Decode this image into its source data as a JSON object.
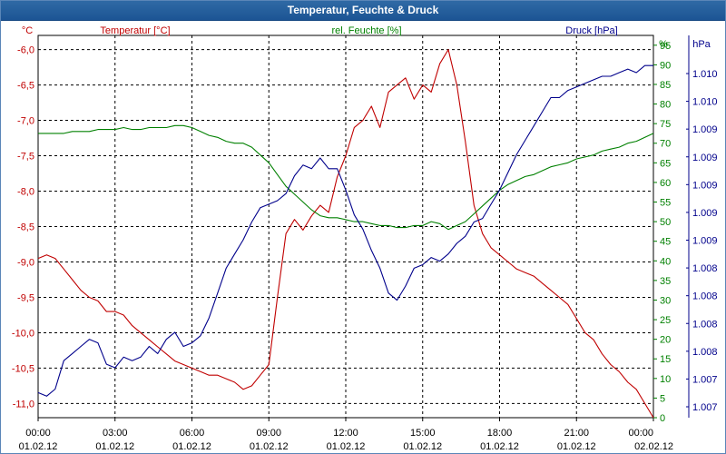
{
  "window": {
    "title": "Temperatur, Feuchte & Druck"
  },
  "chart_data": {
    "type": "line",
    "title": "Temperatur, Feuchte & Druck",
    "grid": true,
    "x_tick_labels": [
      {
        "time": "00:00",
        "date": "01.02.12"
      },
      {
        "time": "03:00",
        "date": "01.02.12"
      },
      {
        "time": "06:00",
        "date": "01.02.12"
      },
      {
        "time": "09:00",
        "date": "01.02.12"
      },
      {
        "time": "12:00",
        "date": "01.02.12"
      },
      {
        "time": "15:00",
        "date": "01.02.12"
      },
      {
        "time": "18:00",
        "date": "01.02.12"
      },
      {
        "time": "21:00",
        "date": "01.02.12"
      },
      {
        "time": "00:00",
        "date": "02.02.12"
      }
    ],
    "xlim": [
      "01.02.12 00:00",
      "02.02.12 00:00"
    ],
    "axes": {
      "temperature": {
        "unit": "°C",
        "ylim": [
          -11.2,
          -5.8
        ],
        "tick_values": [
          -6.0,
          -6.5,
          -7.0,
          -7.5,
          -8.0,
          -8.5,
          -9.0,
          -9.5,
          -10.0,
          -10.5,
          -11.0
        ],
        "tick_labels": [
          "-6,0",
          "-6,5",
          "-7,0",
          "-7,5",
          "-8,0",
          "-8,5",
          "-9,0",
          "-9,5",
          "-10,0",
          "-10,5",
          "-11,0"
        ],
        "color": "#c00000"
      },
      "humidity": {
        "unit": "%",
        "ylim": [
          0,
          97.5
        ],
        "tick_values": [
          95,
          90,
          85,
          80,
          75,
          70,
          65,
          60,
          55,
          50,
          45,
          40,
          35,
          30,
          25,
          20,
          15,
          10,
          5,
          0
        ],
        "tick_labels": [
          "95",
          "90",
          "85",
          "80",
          "75",
          "70",
          "65",
          "60",
          "55",
          "50",
          "45",
          "40",
          "35",
          "30",
          "25",
          "20",
          "15",
          "10",
          "5",
          "0"
        ],
        "color": "#008000"
      },
      "pressure": {
        "unit": "hPa",
        "tick_labels": [
          "1.010",
          "1.010",
          "1.009",
          "1.009",
          "1.009",
          "1.009",
          "1.009",
          "1.008",
          "1.008",
          "1.008",
          "1.008",
          "1.007",
          "1.007"
        ],
        "color": "#00008b"
      }
    },
    "series": [
      {
        "name": "Temperatur [°C]",
        "axis": "temperature",
        "color": "#c00000",
        "x": [
          "00:00",
          "00:20",
          "00:40",
          "01:00",
          "01:20",
          "01:40",
          "02:00",
          "02:20",
          "02:40",
          "03:00",
          "03:20",
          "03:40",
          "04:00",
          "04:20",
          "04:40",
          "05:00",
          "05:20",
          "05:40",
          "06:00",
          "06:20",
          "06:40",
          "07:00",
          "07:20",
          "07:40",
          "08:00",
          "08:20",
          "08:40",
          "09:00",
          "09:20",
          "09:40",
          "10:00",
          "10:20",
          "10:40",
          "11:00",
          "11:20",
          "11:40",
          "12:00",
          "12:20",
          "12:40",
          "13:00",
          "13:20",
          "13:40",
          "14:00",
          "14:20",
          "14:40",
          "15:00",
          "15:20",
          "15:40",
          "16:00",
          "16:20",
          "16:40",
          "17:00",
          "17:20",
          "17:40",
          "18:00",
          "18:20",
          "18:40",
          "19:00",
          "19:20",
          "19:40",
          "20:00",
          "20:20",
          "20:40",
          "21:00",
          "21:20",
          "21:40",
          "22:00",
          "22:20",
          "22:40",
          "23:00",
          "23:20",
          "23:40",
          "00:00"
        ],
        "y": [
          -8.95,
          -8.9,
          -8.95,
          -9.1,
          -9.25,
          -9.4,
          -9.5,
          -9.55,
          -9.7,
          -9.7,
          -9.75,
          -9.9,
          -10.0,
          -10.1,
          -10.2,
          -10.3,
          -10.4,
          -10.45,
          -10.5,
          -10.55,
          -10.6,
          -10.6,
          -10.65,
          -10.7,
          -10.8,
          -10.75,
          -10.6,
          -10.45,
          -9.5,
          -8.6,
          -8.4,
          -8.55,
          -8.35,
          -8.2,
          -8.3,
          -7.8,
          -7.5,
          -7.1,
          -7.0,
          -6.8,
          -7.1,
          -6.6,
          -6.5,
          -6.4,
          -6.7,
          -6.5,
          -6.6,
          -6.2,
          -6.0,
          -6.5,
          -7.3,
          -8.2,
          -8.6,
          -8.8,
          -8.9,
          -9.0,
          -9.1,
          -9.15,
          -9.2,
          -9.3,
          -9.4,
          -9.5,
          -9.6,
          -9.8,
          -10.0,
          -10.1,
          -10.3,
          -10.45,
          -10.55,
          -10.7,
          -10.8,
          -11.0,
          -11.2
        ]
      },
      {
        "name": "rel. Feuchte [%]",
        "axis": "humidity",
        "color": "#008000",
        "x": [
          "00:00",
          "00:20",
          "00:40",
          "01:00",
          "01:20",
          "01:40",
          "02:00",
          "02:20",
          "02:40",
          "03:00",
          "03:20",
          "03:40",
          "04:00",
          "04:20",
          "04:40",
          "05:00",
          "05:20",
          "05:40",
          "06:00",
          "06:20",
          "06:40",
          "07:00",
          "07:20",
          "07:40",
          "08:00",
          "08:20",
          "08:40",
          "09:00",
          "09:20",
          "09:40",
          "10:00",
          "10:20",
          "10:40",
          "11:00",
          "11:20",
          "11:40",
          "12:00",
          "12:20",
          "12:40",
          "13:00",
          "13:20",
          "13:40",
          "14:00",
          "14:20",
          "14:40",
          "15:00",
          "15:20",
          "15:40",
          "16:00",
          "16:20",
          "16:40",
          "17:00",
          "17:20",
          "17:40",
          "18:00",
          "18:20",
          "18:40",
          "19:00",
          "19:20",
          "19:40",
          "20:00",
          "20:20",
          "20:40",
          "21:00",
          "21:20",
          "21:40",
          "22:00",
          "22:20",
          "22:40",
          "23:00",
          "23:20",
          "23:40",
          "00:00"
        ],
        "y": [
          72.5,
          72.5,
          72.5,
          72.5,
          73.0,
          73.0,
          73.0,
          73.5,
          73.5,
          73.5,
          74.0,
          73.5,
          73.5,
          74.0,
          74.0,
          74.0,
          74.5,
          74.5,
          74.0,
          73.0,
          72.0,
          71.5,
          70.5,
          70.0,
          70.0,
          69.0,
          67.0,
          65.0,
          62.0,
          59.0,
          57.0,
          55.0,
          53.0,
          51.5,
          51.0,
          51.0,
          50.5,
          50.0,
          50.0,
          49.5,
          49.0,
          49.0,
          48.5,
          48.5,
          49.0,
          49.0,
          50.0,
          49.5,
          48.0,
          49.0,
          50.0,
          52.0,
          54.0,
          56.0,
          58.0,
          59.5,
          60.5,
          61.5,
          62.0,
          63.0,
          64.0,
          64.5,
          65.0,
          66.0,
          66.5,
          67.0,
          68.0,
          68.5,
          69.0,
          70.0,
          70.5,
          71.5,
          72.5
        ]
      },
      {
        "name": "Druck [hPa]",
        "axis": "pressure",
        "color": "#00008b",
        "note_scale": "relative",
        "x": [
          "00:00",
          "00:20",
          "00:40",
          "01:00",
          "01:20",
          "01:40",
          "02:00",
          "02:20",
          "02:40",
          "03:00",
          "03:20",
          "03:40",
          "04:00",
          "04:20",
          "04:40",
          "05:00",
          "05:20",
          "05:40",
          "06:00",
          "06:20",
          "06:40",
          "07:00",
          "07:20",
          "07:40",
          "08:00",
          "08:20",
          "08:40",
          "09:00",
          "09:20",
          "09:40",
          "10:00",
          "10:20",
          "10:40",
          "11:00",
          "11:20",
          "11:40",
          "12:00",
          "12:20",
          "12:40",
          "13:00",
          "13:20",
          "13:40",
          "14:00",
          "14:20",
          "14:40",
          "15:00",
          "15:20",
          "15:40",
          "16:00",
          "16:20",
          "16:40",
          "17:00",
          "17:20",
          "17:40",
          "18:00",
          "18:20",
          "18:40",
          "19:00",
          "19:20",
          "19:40",
          "20:00",
          "20:20",
          "20:40",
          "21:00",
          "21:20",
          "21:40",
          "22:00",
          "22:20",
          "22:40",
          "23:00",
          "23:20",
          "23:40",
          "00:00"
        ],
        "y": [
          5,
          4,
          6,
          14,
          16,
          18,
          20,
          19,
          13,
          12,
          15,
          14,
          15,
          18,
          16,
          20,
          22,
          18,
          19,
          21,
          26,
          33,
          40,
          44,
          48,
          53,
          57,
          58,
          59,
          61,
          66,
          69,
          68,
          71,
          68,
          68,
          62,
          55,
          51,
          45,
          40,
          33,
          31,
          35,
          40,
          41,
          43,
          42,
          44,
          47,
          49,
          53,
          54,
          58,
          62,
          67,
          72,
          76,
          80,
          84,
          88,
          88,
          90,
          91,
          92,
          93,
          94,
          94,
          95,
          96,
          95,
          97,
          97
        ]
      }
    ]
  },
  "labels": {
    "temp_title": "Temperatur [°C]",
    "hum_title": "rel. Feuchte [%]",
    "press_title": "Druck [hPa]",
    "temp_unit": "°C",
    "hum_unit": "%",
    "press_unit": "hPa"
  }
}
